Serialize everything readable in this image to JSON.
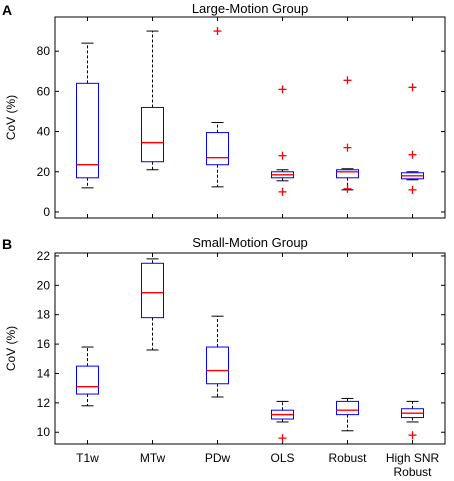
{
  "chart_data": [
    {
      "type": "box",
      "panel_label": "A",
      "title": "Large-Motion Group",
      "ylabel": "CoV (%)",
      "xlabel": "",
      "ylim": [
        -3,
        97
      ],
      "yticks": [
        0,
        20,
        40,
        60,
        80
      ],
      "grid": false,
      "categories": [
        "T1w",
        "MTw",
        "PDw",
        "OLS",
        "Robust",
        "High SNR Robust"
      ],
      "boxes": [
        {
          "whisker_low": 12,
          "q1": 17,
          "median": 23.5,
          "q3": 64,
          "whisker_high": 84,
          "outliers": []
        },
        {
          "whisker_low": 21,
          "q1": 25,
          "median": 34.5,
          "q3": 52,
          "whisker_high": 90,
          "outliers": []
        },
        {
          "whisker_low": 12.5,
          "q1": 23.5,
          "median": 27,
          "q3": 39.5,
          "whisker_high": 44.5,
          "outliers": [
            90
          ]
        },
        {
          "whisker_low": 15.5,
          "q1": 17,
          "median": 18.5,
          "q3": 20,
          "whisker_high": 21,
          "outliers": [
            61,
            28,
            10
          ]
        },
        {
          "whisker_low": 11,
          "q1": 17,
          "median": 20,
          "q3": 21,
          "whisker_high": 21.5,
          "outliers": [
            65.5,
            32,
            11.5
          ]
        },
        {
          "whisker_low": 16,
          "q1": 16.5,
          "median": 18,
          "q3": 19.5,
          "whisker_high": 20,
          "outliers": [
            62,
            28.5,
            11
          ]
        }
      ]
    },
    {
      "type": "box",
      "panel_label": "B",
      "title": "Small-Motion Group",
      "ylabel": "CoV (%)",
      "xlabel": "",
      "ylim": [
        9.2,
        22.2
      ],
      "yticks": [
        10,
        12,
        14,
        16,
        18,
        20,
        22
      ],
      "grid": false,
      "categories": [
        "T1w",
        "MTw",
        "PDw",
        "OLS",
        "Robust",
        "High SNR Robust"
      ],
      "boxes": [
        {
          "whisker_low": 11.8,
          "q1": 12.6,
          "median": 13.1,
          "q3": 14.5,
          "whisker_high": 15.8,
          "outliers": []
        },
        {
          "whisker_low": 15.6,
          "q1": 17.8,
          "median": 19.5,
          "q3": 21.5,
          "whisker_high": 21.8,
          "outliers": []
        },
        {
          "whisker_low": 12.4,
          "q1": 13.3,
          "median": 14.2,
          "q3": 15.8,
          "whisker_high": 17.9,
          "outliers": []
        },
        {
          "whisker_low": 10.7,
          "q1": 10.9,
          "median": 11.2,
          "q3": 11.5,
          "whisker_high": 12.1,
          "outliers": [
            9.6
          ]
        },
        {
          "whisker_low": 10.1,
          "q1": 11.2,
          "median": 11.5,
          "q3": 12.1,
          "whisker_high": 12.3,
          "outliers": []
        },
        {
          "whisker_low": 10.7,
          "q1": 11,
          "median": 11.3,
          "q3": 11.6,
          "whisker_high": 12.1,
          "outliers": [
            9.8
          ]
        }
      ]
    }
  ],
  "colors": {
    "box": "#0000ff",
    "median": "#ff0000",
    "outlier": "#ff0000",
    "whisker": "#000000",
    "axis": "#000000"
  }
}
